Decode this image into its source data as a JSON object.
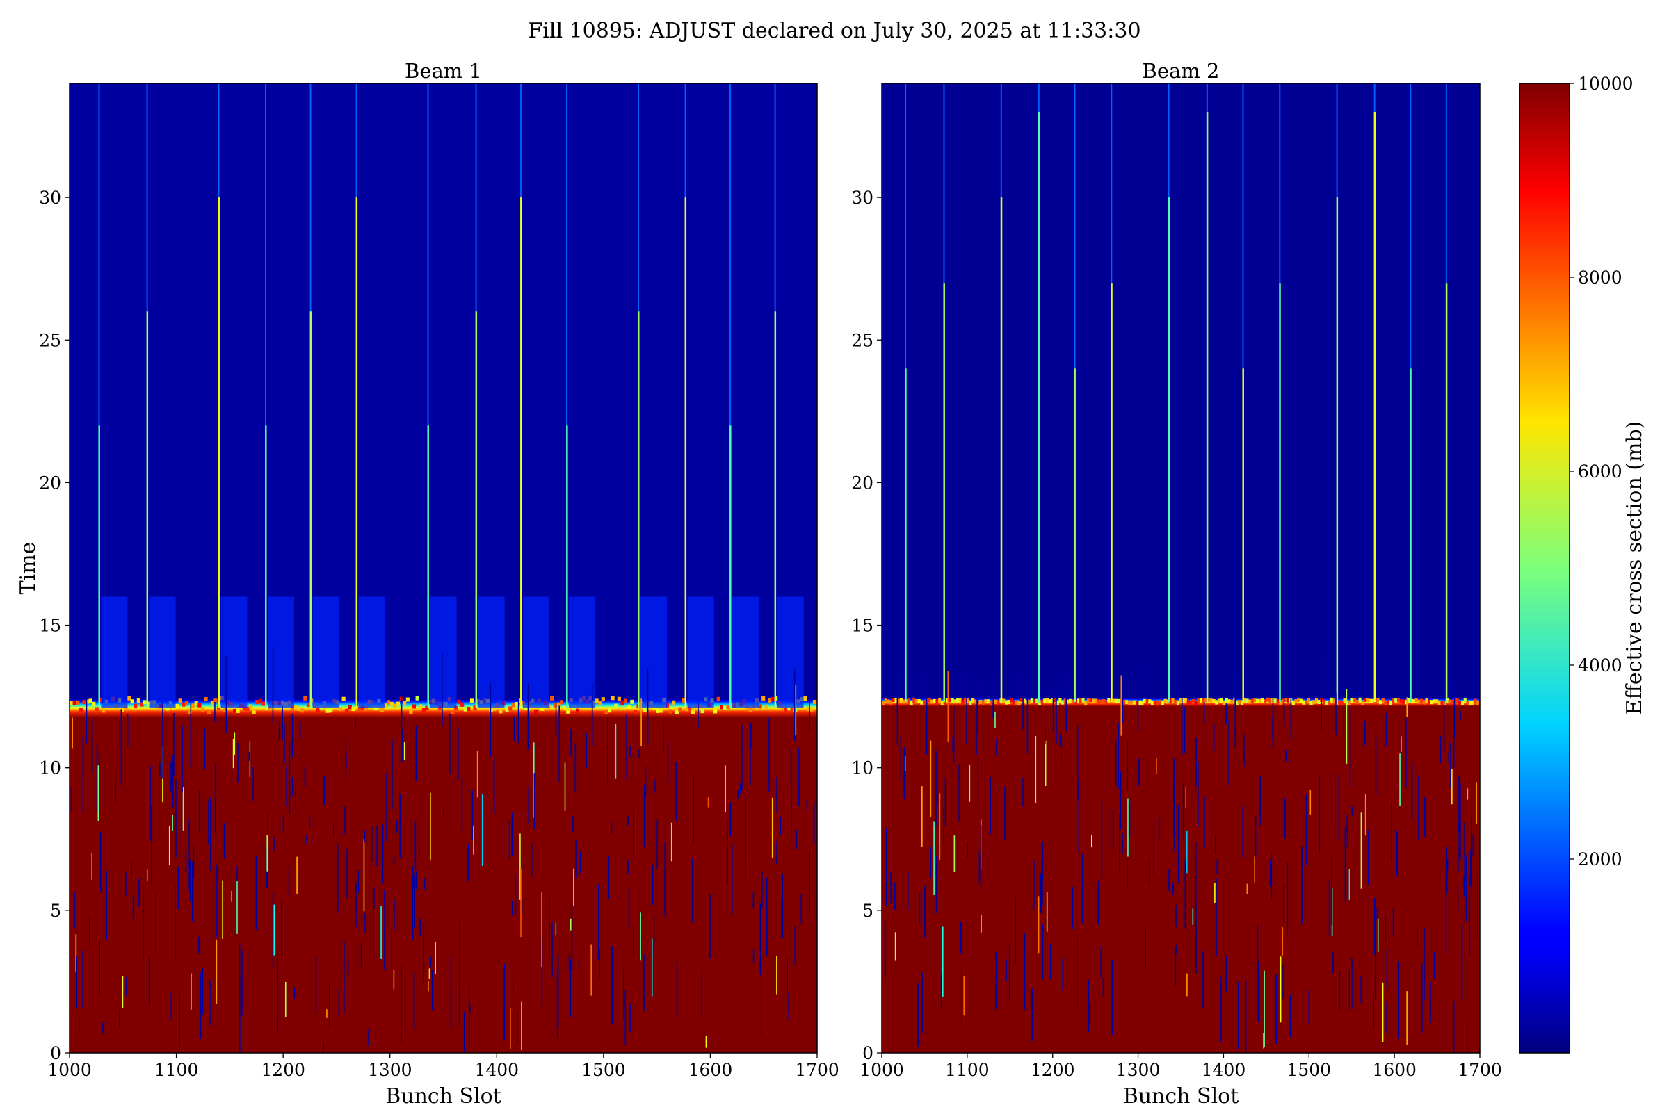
{
  "figure": {
    "suptitle": "Fill 10895: ADJUST declared on July 30, 2025 at 11:33:30"
  },
  "chart_data": [
    {
      "type": "heatmap",
      "title": "Beam 1",
      "xlabel": "Bunch Slot",
      "ylabel": "Time",
      "xlim": [
        1000,
        1700
      ],
      "ylim": [
        0,
        34
      ],
      "xticks": [
        1000,
        1100,
        1200,
        1300,
        1400,
        1500,
        1600,
        1700
      ],
      "yticks": [
        0,
        5,
        10,
        15,
        20,
        25,
        30
      ],
      "colormap": "jet",
      "value_range": [
        0,
        10000
      ],
      "saturation_boundary_time": 12.1,
      "saturated_value": 10000,
      "background_value": 300,
      "train_start_slots": [
        1027,
        1072,
        1139,
        1183,
        1225,
        1268,
        1335,
        1380,
        1422,
        1465,
        1532,
        1576,
        1618,
        1660
      ],
      "grid": false
    },
    {
      "type": "heatmap",
      "title": "Beam 2",
      "xlabel": "Bunch Slot",
      "ylabel": "",
      "xlim": [
        1000,
        1700
      ],
      "ylim": [
        0,
        34
      ],
      "xticks": [
        1000,
        1100,
        1200,
        1300,
        1400,
        1500,
        1600,
        1700
      ],
      "yticks": [
        0,
        5,
        10,
        15,
        20,
        25,
        30
      ],
      "colormap": "jet",
      "value_range": [
        0,
        10000
      ],
      "saturation_boundary_time": 12.3,
      "saturated_value": 10000,
      "background_value": 200,
      "train_start_slots": [
        1027,
        1072,
        1139,
        1183,
        1225,
        1268,
        1335,
        1380,
        1422,
        1465,
        1532,
        1576,
        1618,
        1660
      ],
      "grid": false
    }
  ],
  "colorbar": {
    "label": "Effective cross section (mb)",
    "range": [
      0,
      10000
    ],
    "ticks": [
      2000,
      4000,
      6000,
      8000,
      10000
    ]
  }
}
